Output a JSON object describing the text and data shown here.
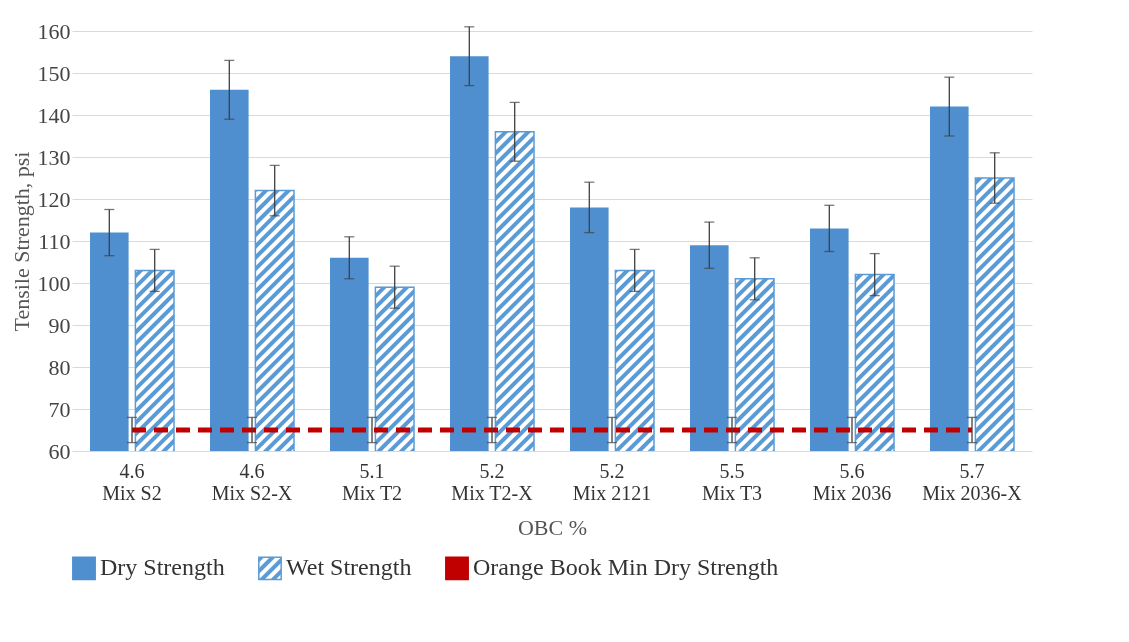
{
  "chart_data": {
    "type": "bar",
    "xlabel": "OBC %",
    "ylabel": "Tensile Strength, psi",
    "categories": [
      "4.6\nMix S2",
      "4.6\nMix S2-X",
      "5.1\nMix T2",
      "5.2\nMix T2-X",
      "5.2\nMix 2121",
      "5.5\nMix T3",
      "5.6\nMix 2036",
      "5.7\nMix 2036-X"
    ],
    "series": [
      {
        "name": "Dry Strength",
        "color": "#4f8fcf",
        "values": [
          112,
          146,
          106,
          154,
          118,
          109,
          113,
          142
        ],
        "errors": [
          5.5,
          7,
          5,
          7,
          6,
          5.5,
          5.5,
          7
        ]
      },
      {
        "name": "Wet Strength",
        "color": "#5b9bd5",
        "values": [
          103,
          122,
          99,
          136,
          103,
          101,
          102,
          125
        ],
        "errors": [
          5,
          6,
          5,
          7,
          5,
          5,
          5,
          6
        ]
      },
      {
        "name": "Orange Book Min Dry Strength",
        "type": "line",
        "color": "#c00000",
        "line_style": "dashed",
        "marker": "none",
        "values": [
          65,
          65,
          65,
          65,
          65,
          65,
          65,
          65
        ],
        "errors": [
          3,
          3,
          3,
          3,
          3,
          3,
          3,
          3
        ]
      }
    ],
    "ylim": [
      60,
      160
    ],
    "yticks": [
      60,
      70,
      80,
      90,
      100,
      110,
      120,
      130,
      140,
      150,
      160
    ],
    "grid": "y",
    "legend": "bottom"
  }
}
